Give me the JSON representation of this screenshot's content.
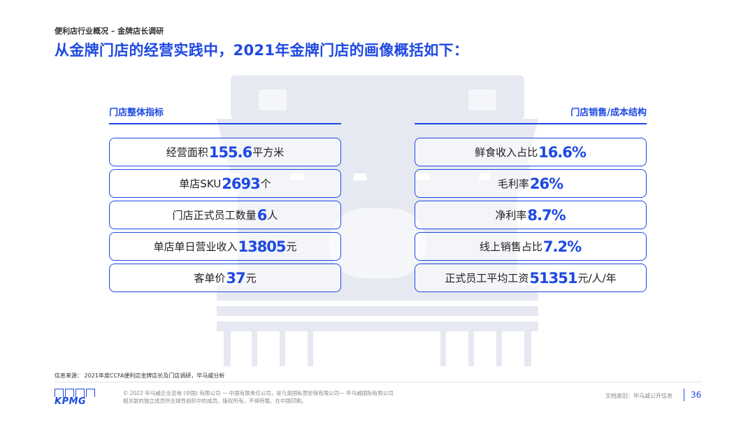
{
  "header": {
    "breadcrumb": "便利店行业概况 – 金牌店长调研",
    "title": "从金牌门店的经营实践中，2021年金牌门店的画像概括如下："
  },
  "left_panel": {
    "heading": "门店整体指标",
    "metrics": [
      {
        "prefix": "经营面积",
        "value": "155.6",
        "suffix": "平方米"
      },
      {
        "prefix": "单店SKU",
        "value": "2693",
        "suffix": "个"
      },
      {
        "prefix": "门店正式员工数量",
        "value": "6",
        "suffix": "人"
      },
      {
        "prefix": "单店单日营业收入",
        "value": "13805",
        "suffix": "元"
      },
      {
        "prefix": "客单价",
        "value": "37",
        "suffix": "元"
      }
    ]
  },
  "right_panel": {
    "heading": "门店销售/成本结构",
    "metrics": [
      {
        "prefix": "鲜食收入占比",
        "value": "16.6%",
        "suffix": ""
      },
      {
        "prefix": "毛利率",
        "value": "26%",
        "suffix": ""
      },
      {
        "prefix": "净利率",
        "value": "8.7%",
        "suffix": ""
      },
      {
        "prefix": "线上销售占比",
        "value": "7.2%",
        "suffix": ""
      },
      {
        "prefix": "正式员工平均工资",
        "value": "51351",
        "suffix": "元/人/年"
      }
    ]
  },
  "footer": {
    "source": "信息来源：   2021年度CCFA便利店金牌店长及门店调研，毕马威分析",
    "logo_text": "KPMG",
    "legal_line1": "© 2022 毕马威企业咨询 (中国) 有限公司 — 中国有限责任公司，是与英国私营担保有限公司— 毕马威国际有限公司",
    "legal_line2": "相关联的独立成员所全球性组织中的成员。版权所有，不得转载。在中国印刷。",
    "doc_class": "文档类别：毕马威公开信息",
    "page_number": "36"
  },
  "colors": {
    "accent": "#1E49E2",
    "watermark": "#E6E9F1",
    "text": "#1E1E1E"
  }
}
